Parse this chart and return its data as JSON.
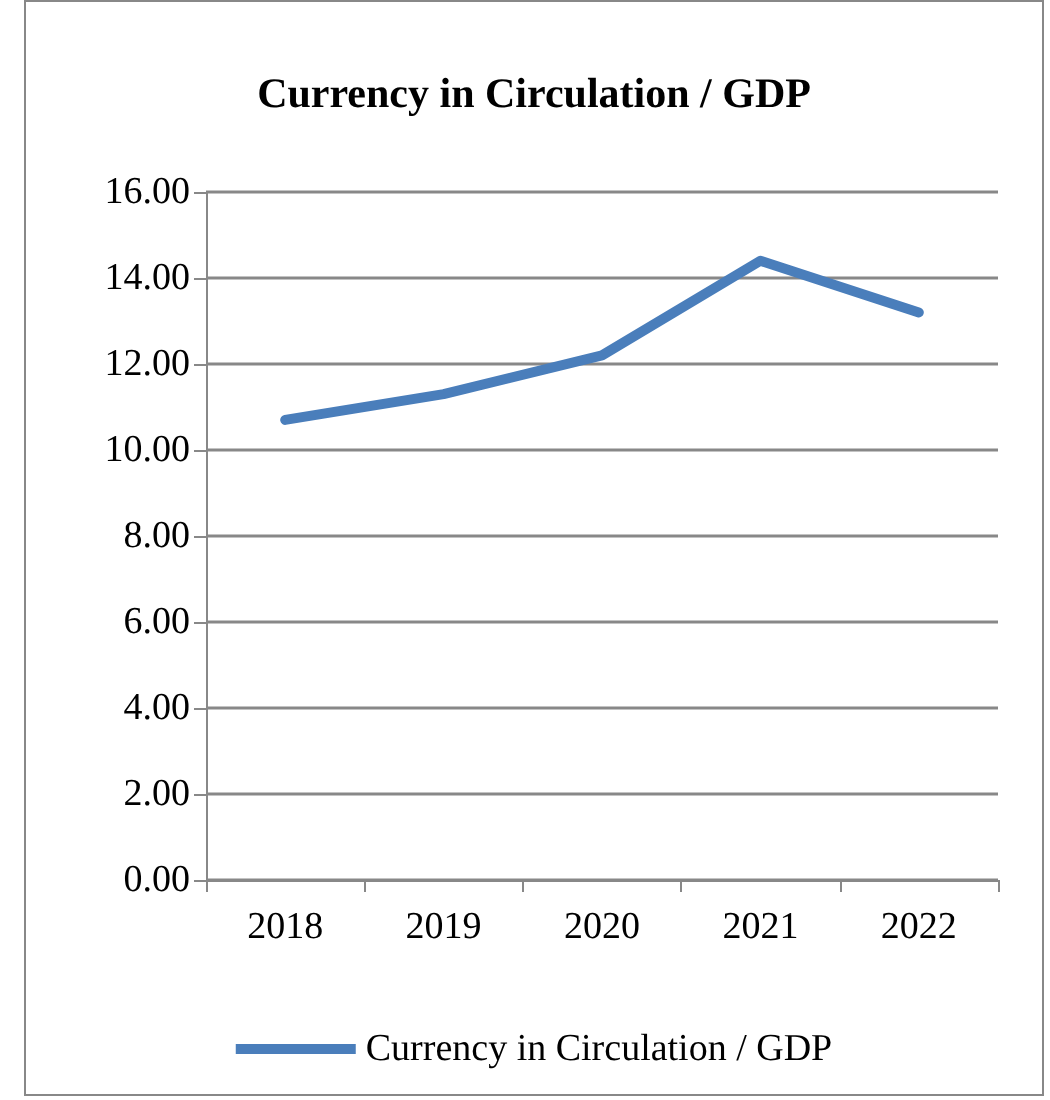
{
  "chart_data": {
    "type": "line",
    "title": "Currency in Circulation / GDP",
    "categories": [
      "2018",
      "2019",
      "2020",
      "2021",
      "2022"
    ],
    "series": [
      {
        "name": "Currency in Circulation / GDP",
        "color": "#4a7ebb",
        "values": [
          10.7,
          11.3,
          12.2,
          14.4,
          13.2
        ]
      }
    ],
    "ylim": [
      0,
      16
    ],
    "yticks": [
      {
        "value": 0,
        "label": "0.00"
      },
      {
        "value": 2,
        "label": "2.00"
      },
      {
        "value": 4,
        "label": "4.00"
      },
      {
        "value": 6,
        "label": "6.00"
      },
      {
        "value": 8,
        "label": "8.00"
      },
      {
        "value": 10,
        "label": "10.00"
      },
      {
        "value": 12,
        "label": "12.00"
      },
      {
        "value": 14,
        "label": "14.00"
      },
      {
        "value": 16,
        "label": "16.00"
      }
    ],
    "grid": "y",
    "legend": "bottom",
    "marker": "none",
    "line_style": "solid"
  }
}
